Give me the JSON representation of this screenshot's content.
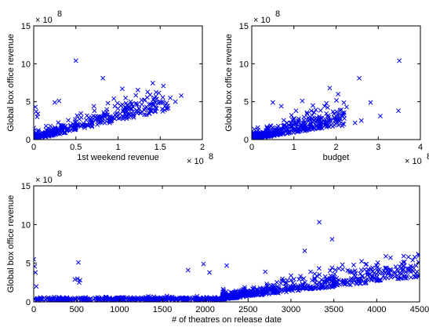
{
  "chart_data": [
    {
      "type": "scatter",
      "xlabel": "1st weekend revenue",
      "ylabel": "Global box office revenue",
      "x_multiplier": "× 10",
      "x_multiplier_exp": "8",
      "y_multiplier": "× 10",
      "y_multiplier_exp": "8",
      "xlim": [
        0,
        2
      ],
      "ylim": [
        0,
        15
      ],
      "xticks": [
        0,
        0.5,
        1,
        1.5,
        2
      ],
      "xtick_labels": [
        "0",
        "0.5",
        "1",
        "1.5",
        "2"
      ],
      "yticks": [
        0,
        5,
        10,
        15
      ],
      "ytick_labels": [
        "0",
        "5",
        "10",
        "15"
      ],
      "marker": "x",
      "color": "#0000ee",
      "x": [
        0.5,
        0.82,
        1.05,
        1.62,
        1.75,
        1.68,
        1.38,
        1.28,
        0.95,
        0.88,
        1.15,
        0.3,
        0.25,
        0.02,
        0.03,
        0.05,
        0.04,
        0.72,
        1.45
      ],
      "y": [
        10.4,
        8.1,
        6.7,
        5.5,
        5.8,
        5.0,
        5.9,
        5.2,
        5.4,
        4.8,
        5.0,
        5.1,
        4.9,
        4.3,
        3.7,
        3.4,
        3.0,
        3.8,
        4.2
      ],
      "trend": {
        "x0": 0,
        "x1": 1.6,
        "slope": 2.4,
        "spread": 1.1,
        "count": 380
      }
    },
    {
      "type": "scatter",
      "xlabel": "budget",
      "ylabel": "Global box office revenue",
      "x_multiplier": "× 10",
      "x_multiplier_exp": "8",
      "y_multiplier": "× 10",
      "y_multiplier_exp": "8",
      "xlim": [
        0,
        4
      ],
      "ylim": [
        0,
        15
      ],
      "xticks": [
        0,
        1,
        2,
        3,
        4
      ],
      "xtick_labels": [
        "0",
        "1",
        "2",
        "3",
        "4"
      ],
      "yticks": [
        0,
        5,
        10,
        15
      ],
      "ytick_labels": [
        "0",
        "5",
        "10",
        "15"
      ],
      "marker": "x",
      "color": "#0000ee",
      "x": [
        3.5,
        3.48,
        2.55,
        2.6,
        2.05,
        1.85,
        2.82,
        1.95,
        2.45,
        2.25,
        1.45,
        1.2,
        0.5,
        0.7,
        1.05,
        3.05,
        2.15,
        1.6
      ],
      "y": [
        10.4,
        3.8,
        8.1,
        2.5,
        6.0,
        6.8,
        4.9,
        3.4,
        2.2,
        4.3,
        4.5,
        5.1,
        4.9,
        4.4,
        3.8,
        3.1,
        1.8,
        2.6
      ],
      "trend": {
        "x0": 0,
        "x1": 2.2,
        "slope": 0.9,
        "spread": 1.0,
        "count": 420
      }
    },
    {
      "type": "scatter",
      "xlabel": "# of theatres on release date",
      "ylabel": "Global box office revenue",
      "y_multiplier": "× 10",
      "y_multiplier_exp": "8",
      "xlim": [
        0,
        4500
      ],
      "ylim": [
        0,
        15
      ],
      "xticks": [
        0,
        500,
        1000,
        1500,
        2000,
        2500,
        3000,
        3500,
        4000,
        4500
      ],
      "xtick_labels": [
        "0",
        "500",
        "1000",
        "1500",
        "2000",
        "2500",
        "3000",
        "3500",
        "4000",
        "4500"
      ],
      "yticks": [
        0,
        5,
        10,
        15
      ],
      "ytick_labels": [
        "0",
        "5",
        "10",
        "15"
      ],
      "marker": "x",
      "color": "#0000ee",
      "x": [
        3330,
        3480,
        3160,
        4370,
        4420,
        520,
        510,
        540,
        0,
        10,
        20,
        1980,
        2250,
        2050,
        1800,
        3000,
        2700,
        3900,
        4000,
        4100,
        3600,
        3750,
        530,
        480,
        30,
        4250,
        2900,
        3400
      ],
      "y": [
        10.3,
        8.1,
        6.6,
        5.8,
        5.4,
        5.1,
        3.0,
        2.8,
        5.5,
        4.6,
        3.8,
        4.9,
        4.7,
        3.8,
        4.1,
        3.4,
        3.9,
        4.2,
        3.6,
        4.4,
        4.8,
        3.3,
        2.5,
        2.9,
        2.0,
        4.0,
        3.0,
        2.6
      ],
      "baseline": {
        "x0": 0,
        "x1": 2200,
        "level": 0.25,
        "spread": 0.3,
        "count": 380
      },
      "trend": {
        "x0": 2200,
        "x1": 4500,
        "y0": 0.3,
        "y1": 3.2,
        "spread": 1.0,
        "count": 600
      }
    }
  ]
}
